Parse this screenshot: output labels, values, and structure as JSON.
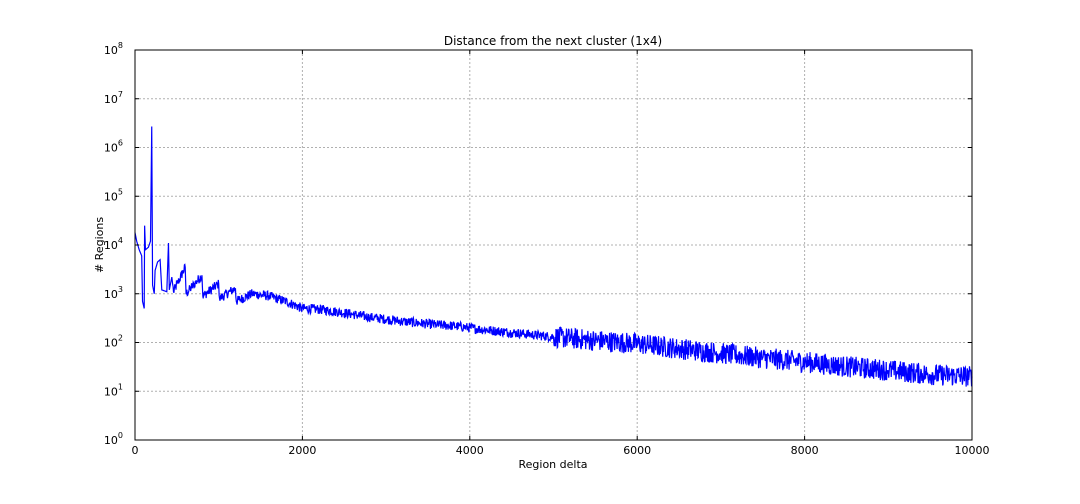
{
  "chart_data": {
    "type": "line",
    "title": "Distance from the next cluster (1x4)",
    "xlabel": "Region delta",
    "ylabel": "# Regions",
    "xlim": [
      0,
      10000
    ],
    "ylim": [
      1,
      100000000
    ],
    "yscale": "log",
    "grid": true,
    "line_color": "#0000ff",
    "x_ticks": [
      {
        "value": 0,
        "label": "0"
      },
      {
        "value": 2000,
        "label": "2000"
      },
      {
        "value": 4000,
        "label": "4000"
      },
      {
        "value": 6000,
        "label": "6000"
      },
      {
        "value": 8000,
        "label": "8000"
      },
      {
        "value": 10000,
        "label": "10000"
      }
    ],
    "y_ticks": [
      {
        "value": 1,
        "base": "10",
        "exp": "0"
      },
      {
        "value": 10,
        "base": "10",
        "exp": "1"
      },
      {
        "value": 100,
        "base": "10",
        "exp": "2"
      },
      {
        "value": 1000,
        "base": "10",
        "exp": "3"
      },
      {
        "value": 10000,
        "base": "10",
        "exp": "4"
      },
      {
        "value": 100000,
        "base": "10",
        "exp": "5"
      },
      {
        "value": 1000000,
        "base": "10",
        "exp": "6"
      },
      {
        "value": 10000000,
        "base": "10",
        "exp": "7"
      },
      {
        "value": 100000000,
        "base": "10",
        "exp": "8"
      }
    ],
    "series": [
      {
        "values_description_points": [
          [
            0,
            18000
          ],
          [
            20,
            12000
          ],
          [
            50,
            8000
          ],
          [
            80,
            6000
          ],
          [
            90,
            700
          ],
          [
            110,
            500
          ],
          [
            115,
            25000
          ],
          [
            125,
            8000
          ],
          [
            160,
            9000
          ],
          [
            185,
            12000
          ],
          [
            200,
            2700000
          ],
          [
            210,
            1500
          ],
          [
            230,
            1000
          ],
          [
            240,
            3000
          ],
          [
            270,
            4500
          ],
          [
            300,
            5000
          ],
          [
            320,
            1200
          ],
          [
            380,
            1100
          ],
          [
            400,
            11000
          ],
          [
            410,
            1200
          ],
          [
            440,
            2200
          ],
          [
            460,
            1100
          ],
          [
            600,
            3500
          ],
          [
            610,
            1000
          ],
          [
            800,
            2400
          ],
          [
            810,
            900
          ],
          [
            1000,
            1600
          ],
          [
            1010,
            800
          ],
          [
            1200,
            1300
          ],
          [
            1210,
            700
          ],
          [
            1400,
            1000
          ],
          [
            1600,
            900
          ],
          [
            1800,
            700
          ],
          [
            2000,
            500
          ],
          [
            2200,
            480
          ],
          [
            2400,
            430
          ],
          [
            2600,
            380
          ],
          [
            2800,
            330
          ],
          [
            3000,
            300
          ],
          [
            3200,
            270
          ],
          [
            3400,
            250
          ],
          [
            3600,
            230
          ],
          [
            3800,
            220
          ],
          [
            4000,
            200
          ],
          [
            4200,
            180
          ],
          [
            4500,
            160
          ],
          [
            5000,
            130
          ],
          [
            5500,
            110
          ],
          [
            6000,
            95
          ],
          [
            6500,
            75
          ],
          [
            7000,
            60
          ],
          [
            7500,
            48
          ],
          [
            8000,
            40
          ],
          [
            8500,
            32
          ],
          [
            9000,
            27
          ],
          [
            9500,
            22
          ],
          [
            10000,
            20
          ]
        ]
      }
    ]
  }
}
